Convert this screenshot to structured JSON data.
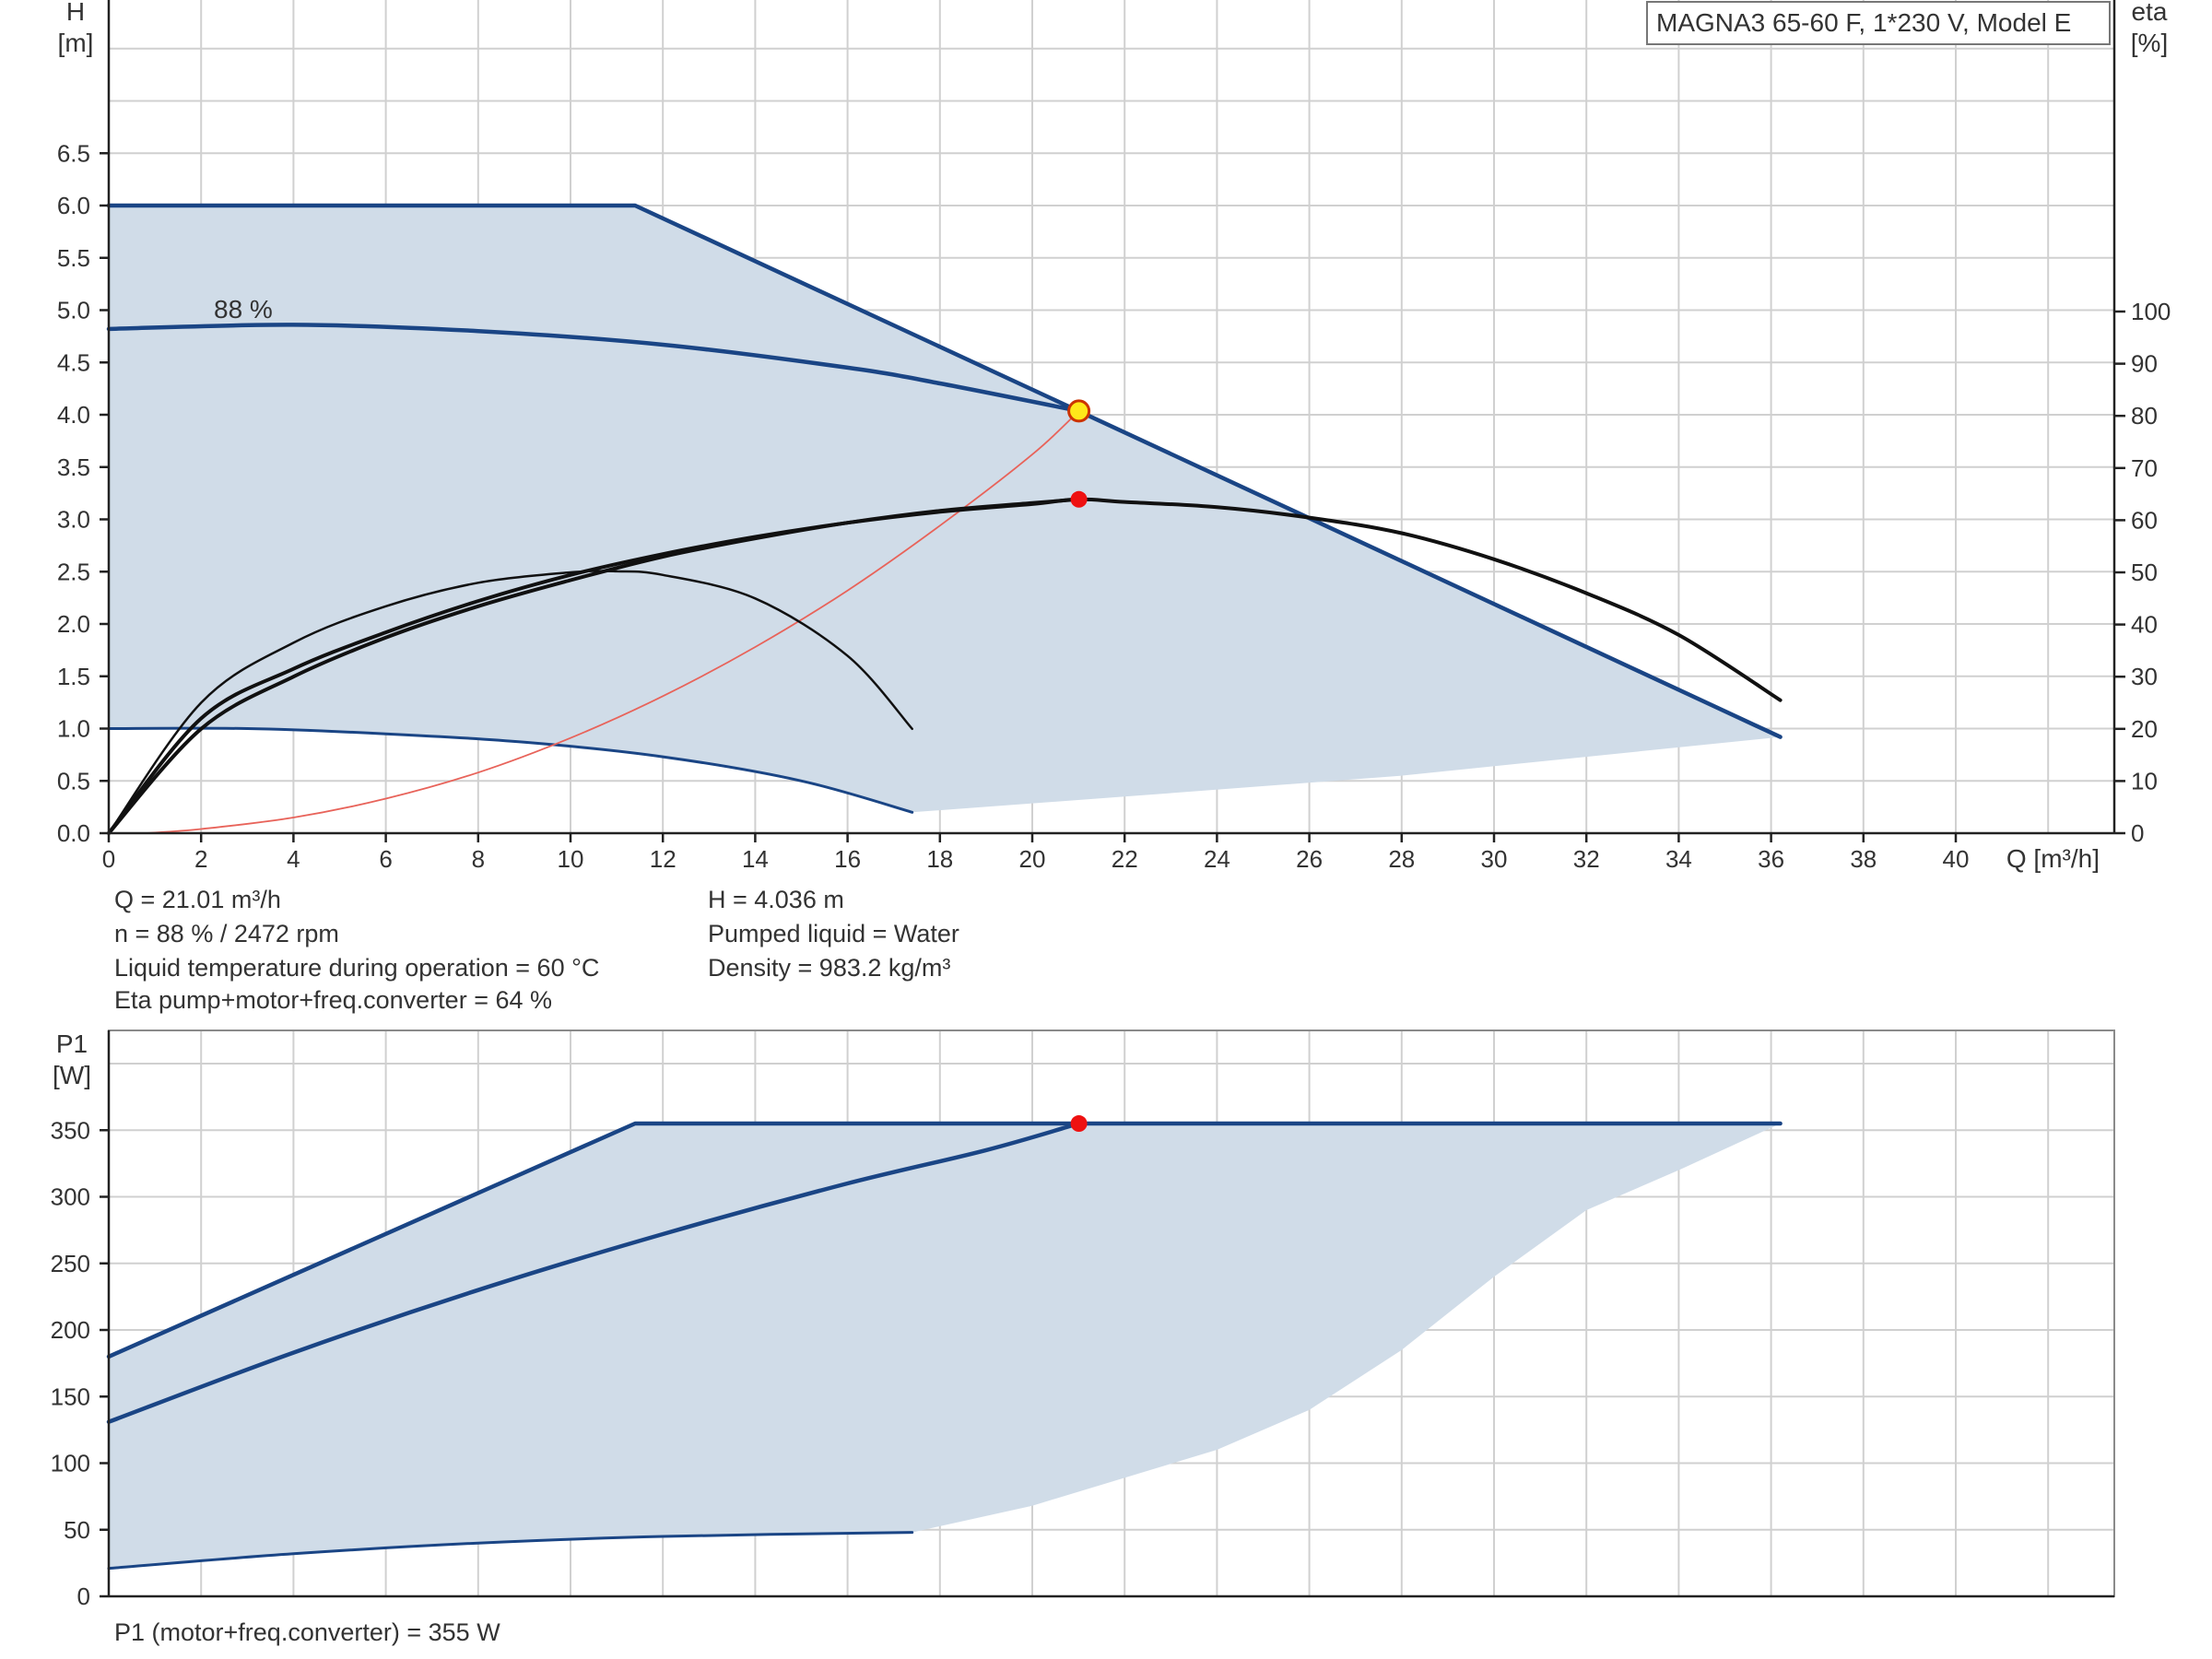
{
  "chart_data": [
    {
      "type": "line",
      "model_label": "MAGNA3 65-60 F, 1*230 V, Model E",
      "xlabel": "Q [m³/h]",
      "ylabel": [
        "H",
        "[m]"
      ],
      "y2label": [
        "eta",
        "[%]"
      ],
      "xlim": [
        0,
        42
      ],
      "ylim": [
        0,
        8
      ],
      "y2lim": [
        0,
        100
      ],
      "x_ticks": [
        0,
        2,
        4,
        6,
        8,
        10,
        12,
        14,
        16,
        18,
        20,
        22,
        24,
        26,
        28,
        30,
        32,
        34,
        36,
        38,
        40
      ],
      "y_ticks": [
        "0.0",
        "0.5",
        "1.0",
        "1.5",
        "2.0",
        "2.5",
        "3.0",
        "3.5",
        "4.0",
        "4.5",
        "5.0",
        "5.5",
        "6.0",
        "6.5"
      ],
      "y2_ticks": [
        "0",
        "10",
        "20",
        "30",
        "40",
        "50",
        "60",
        "70",
        "80",
        "90",
        "100"
      ],
      "grid": true,
      "curve_label": "88 %",
      "series": [
        {
          "role": "max-curve",
          "color": "#1a4585",
          "x": [
            0,
            11.4,
            21.0,
            36.2
          ],
          "y": [
            6.0,
            6.0,
            4.036,
            0.92
          ]
        },
        {
          "role": "duty-curve",
          "color": "#1a4585",
          "x": [
            0,
            4,
            8,
            12,
            16,
            18,
            21.01
          ],
          "y": [
            4.82,
            4.86,
            4.8,
            4.67,
            4.45,
            4.3,
            4.036
          ]
        },
        {
          "role": "min-curve",
          "color": "#1a4585",
          "x": [
            0,
            3,
            6,
            9,
            12,
            15,
            17.4
          ],
          "y": [
            1.0,
            1.0,
            0.95,
            0.87,
            0.73,
            0.5,
            0.2
          ]
        },
        {
          "role": "min-envelope",
          "color": "#1a4585",
          "x": [
            17.4,
            22,
            28,
            36.2
          ],
          "y": [
            0.2,
            0.35,
            0.55,
            0.92
          ]
        },
        {
          "role": "system-curve",
          "color": "#e8635a",
          "x": [
            0.8,
            2,
            4,
            6,
            8,
            10,
            12,
            14,
            16,
            18,
            20,
            21.01
          ],
          "y": [
            0.0,
            0.04,
            0.15,
            0.33,
            0.58,
            0.91,
            1.31,
            1.78,
            2.32,
            2.94,
            3.62,
            4.036
          ]
        },
        {
          "role": "eta-max",
          "color": "#111111",
          "x": [
            0,
            2,
            4,
            6,
            8,
            10,
            12,
            14,
            16,
            18,
            20,
            21,
            22,
            24,
            26,
            28,
            30,
            32,
            34,
            36.2
          ],
          "y": [
            0,
            22,
            31.5,
            38.5,
            44.5,
            49.5,
            53.5,
            56.8,
            59.5,
            61.6,
            63.1,
            64,
            63.5,
            62.5,
            60.5,
            57.5,
            52.5,
            46,
            38,
            25.5
          ]
        },
        {
          "role": "eta-duty",
          "color": "#111111",
          "x": [
            0,
            2,
            4,
            6,
            8,
            10,
            12,
            14,
            16,
            18,
            20,
            21
          ],
          "y": [
            0,
            20,
            30,
            37.5,
            43.5,
            48.5,
            53,
            56.5,
            59.5,
            61.8,
            63.3,
            64
          ]
        },
        {
          "role": "eta-min",
          "color": "#111111",
          "x": [
            0,
            2,
            4,
            6,
            8,
            10,
            11,
            12,
            14,
            16,
            17.4
          ],
          "y": [
            0,
            25,
            36.5,
            43.5,
            48,
            50,
            50.2,
            49.5,
            45,
            34,
            20
          ]
        }
      ],
      "duty_point": {
        "x": 21.01,
        "y": 4.036
      },
      "eta_point": {
        "x": 21.01,
        "y": 64
      }
    },
    {
      "type": "line",
      "ylabel": [
        "P1",
        "[W]"
      ],
      "xlim": [
        0,
        42
      ],
      "ylim": [
        0,
        400
      ],
      "y_ticks": [
        "0",
        "50",
        "100",
        "150",
        "200",
        "250",
        "300",
        "350"
      ],
      "grid": true,
      "series": [
        {
          "role": "p1-max",
          "color": "#1a4585",
          "x": [
            0,
            11.4,
            21.0,
            36.2
          ],
          "y": [
            180,
            355,
            355,
            355
          ]
        },
        {
          "role": "p1-duty",
          "color": "#1a4585",
          "x": [
            0,
            4,
            8,
            12,
            16,
            19,
            21.01
          ],
          "y": [
            131,
            183,
            230,
            272,
            310,
            335,
            355
          ]
        },
        {
          "role": "p1-min",
          "color": "#1a4585",
          "x": [
            0,
            4,
            8,
            12,
            17.4
          ],
          "y": [
            21,
            32,
            40,
            45,
            48
          ]
        },
        {
          "role": "p1-envelope",
          "color": "#d0dce8",
          "x": [
            17.4,
            20,
            24,
            26,
            28,
            30,
            32,
            34,
            36.2
          ],
          "y": [
            48,
            68,
            110,
            140,
            185,
            240,
            290,
            320,
            355
          ]
        }
      ],
      "duty_point": {
        "x": 21.01,
        "y": 355
      }
    }
  ],
  "info": {
    "q": "Q = 21.01 m³/h",
    "h": "H = 4.036 m",
    "n": "n = 88 % / 2472 rpm",
    "liquid": "Pumped liquid = Water",
    "temp": "Liquid temperature during operation = 60 °C",
    "density": "Density = 983.2 kg/m³",
    "eta": "Eta pump+motor+freq.converter = 64 %",
    "p1": "P1 (motor+freq.converter) = 355 W"
  }
}
